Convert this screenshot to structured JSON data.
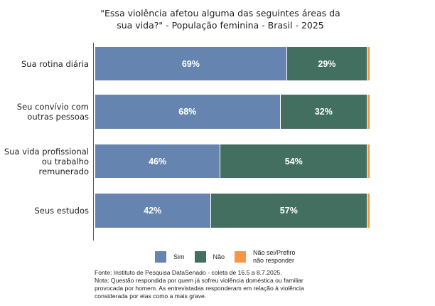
{
  "chart_data": {
    "type": "bar",
    "orientation": "horizontal-stacked-100",
    "title": "\"Essa violência afetou alguma das seguintes áreas da sua vida?\" - População feminina - Brasil - 2025",
    "categories": [
      "Sua rotina diária",
      "Seu convívio com outras pessoas",
      "Sua vida profissional ou trabalho remunerado",
      "Seus estudos"
    ],
    "series": [
      {
        "name": "Sim",
        "color": "#6585B0",
        "values": [
          69,
          68,
          46,
          42
        ]
      },
      {
        "name": "Não",
        "color": "#426F5F",
        "values": [
          29,
          32,
          54,
          57
        ]
      },
      {
        "name": "Não sei/Prefiro não responder",
        "color": "#F79646",
        "values": [
          1,
          1,
          1,
          1
        ]
      }
    ],
    "data_labels": [
      [
        "69%",
        "29%"
      ],
      [
        "68%",
        "32%"
      ],
      [
        "46%",
        "54%"
      ],
      [
        "42%",
        "57%"
      ]
    ],
    "legend_position": "bottom",
    "grid": false
  },
  "notes": [
    "Fonte: Instituto de Pesquisa DataSenado - coleta de 16.5 a 8.7.2025.",
    "Nota: Questão respondida por quem já sofreu violência doméstica ou familiar provocada por homem. As entrevistadas responderam em relação à violência considerada por elas como a mais grave."
  ]
}
